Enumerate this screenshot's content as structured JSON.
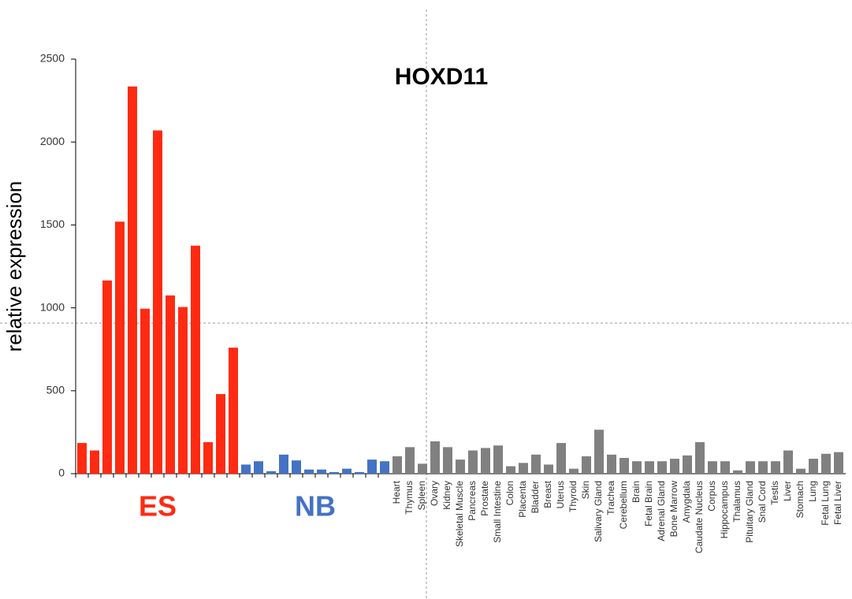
{
  "chart_data": {
    "type": "bar",
    "title": "HOXD11",
    "y_label": "relative expression",
    "ylim": [
      0,
      2500
    ],
    "yticks": [
      0,
      500,
      1000,
      1500,
      2000,
      2500
    ],
    "series": [
      {
        "name": "ES",
        "color": "#ff2a12",
        "values": [
          185,
          140,
          1165,
          1520,
          2335,
          995,
          2070,
          1075,
          1005,
          1375,
          190,
          480,
          760
        ]
      },
      {
        "name": "NB",
        "color": "#4472c4",
        "values": [
          55,
          75,
          15,
          115,
          80,
          25,
          25,
          10,
          30,
          10,
          85,
          75
        ]
      },
      {
        "color": "#808080",
        "categories": [
          "Heart",
          "Thymus",
          "Spleen",
          "Ovary",
          "Kidney",
          "Skeletal Muscle",
          "Pancreas",
          "Prostate",
          "Small Intestine",
          "Colon",
          "Placenta",
          "Bladder",
          "Breast",
          "Uterus",
          "Thyroid",
          "Skin",
          "Salivary Gland",
          "Trachea",
          "Cerebellum",
          "Brain",
          "Fetal Brain",
          "Adrenal Gland",
          "Bone Marrow",
          "Amygdala",
          "Caudate Nucleus",
          "Corpus",
          "Hippocampus",
          "Thalamus",
          "Pituitary Gland",
          "Snal Cord",
          "Testis",
          "Liver",
          "Stomach",
          "Lung",
          "Fetal Lung",
          "Fetal Liver"
        ],
        "values": [
          105,
          160,
          60,
          195,
          160,
          85,
          140,
          155,
          170,
          45,
          65,
          115,
          55,
          185,
          30,
          105,
          265,
          115,
          95,
          75,
          75,
          75,
          90,
          110,
          190,
          75,
          75,
          20,
          75,
          75,
          75,
          140,
          30,
          90,
          120,
          130
        ]
      }
    ]
  }
}
